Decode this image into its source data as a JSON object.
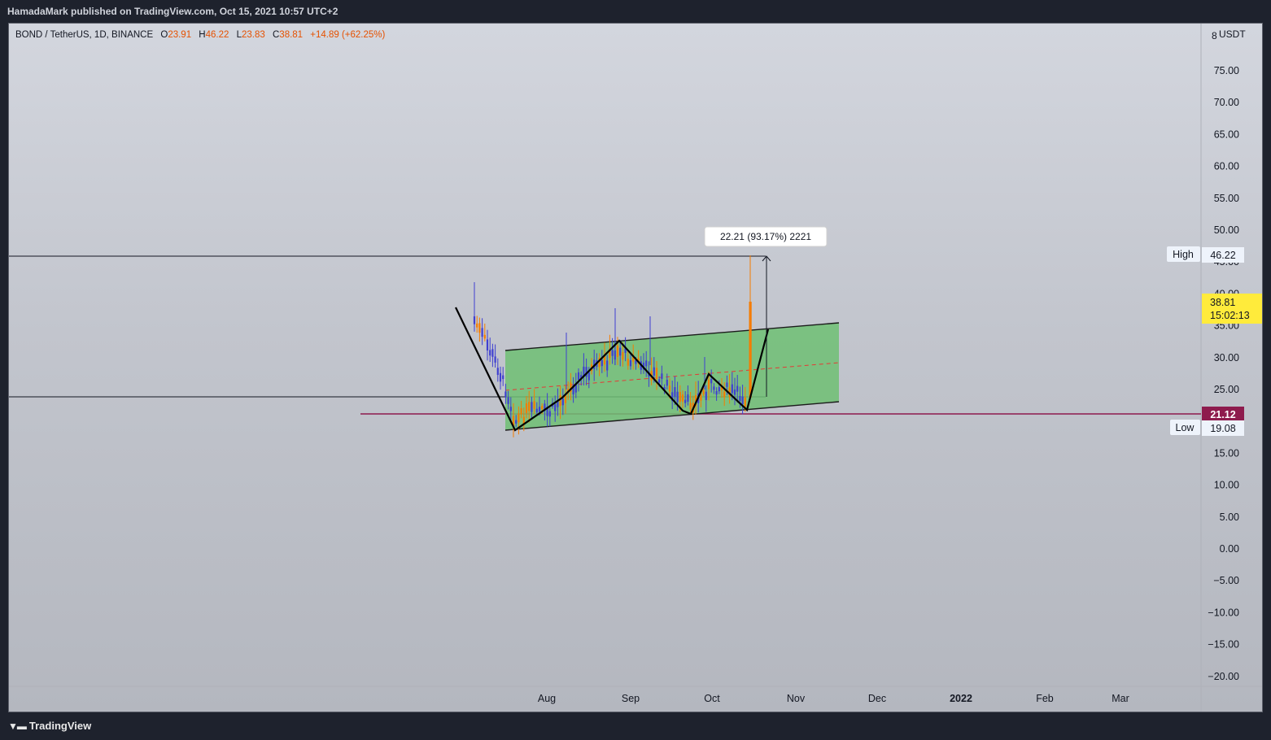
{
  "publish_line": "HamadaMark published on TradingView.com, Oct 15, 2021 10:57 UTC+2",
  "legend": {
    "symbol": "BOND / TetherUS, 1D, BINANCE",
    "o_label": "O",
    "o": "23.91",
    "h_label": "H",
    "h": "46.22",
    "l_label": "L",
    "l": "23.83",
    "c_label": "C",
    "c": "38.81",
    "change": "+14.89 (+62.25%)"
  },
  "currency": "USDT",
  "currency_prefix": "8",
  "price_axis": [
    "75.00",
    "70.00",
    "65.00",
    "60.00",
    "55.00",
    "50.00",
    "45.00",
    "40.00",
    "35.00",
    "30.00",
    "25.00",
    "20.00",
    "15.00",
    "10.00",
    "5.00",
    "0.00",
    "−5.00",
    "−10.00",
    "−15.00",
    "−20.00"
  ],
  "time_axis": [
    "Aug",
    "Sep",
    "Oct",
    "Nov",
    "Dec",
    "2022",
    "Feb",
    "Mar"
  ],
  "labels": {
    "high_tag": "High",
    "high_value": "46.22",
    "low_tag": "Low",
    "low_value": "19.08",
    "last_price": "38.81",
    "countdown": "15:02:13",
    "support_level": "21.12",
    "measure": "22.21 (93.17%) 2221"
  },
  "colors": {
    "up": "#f57c00",
    "down": "#3f3fd1",
    "channel_fill": "#6fbf73",
    "support_line": "#8e1b4d",
    "price_tag": "#ffeb3b"
  },
  "brand": "TradingView"
}
